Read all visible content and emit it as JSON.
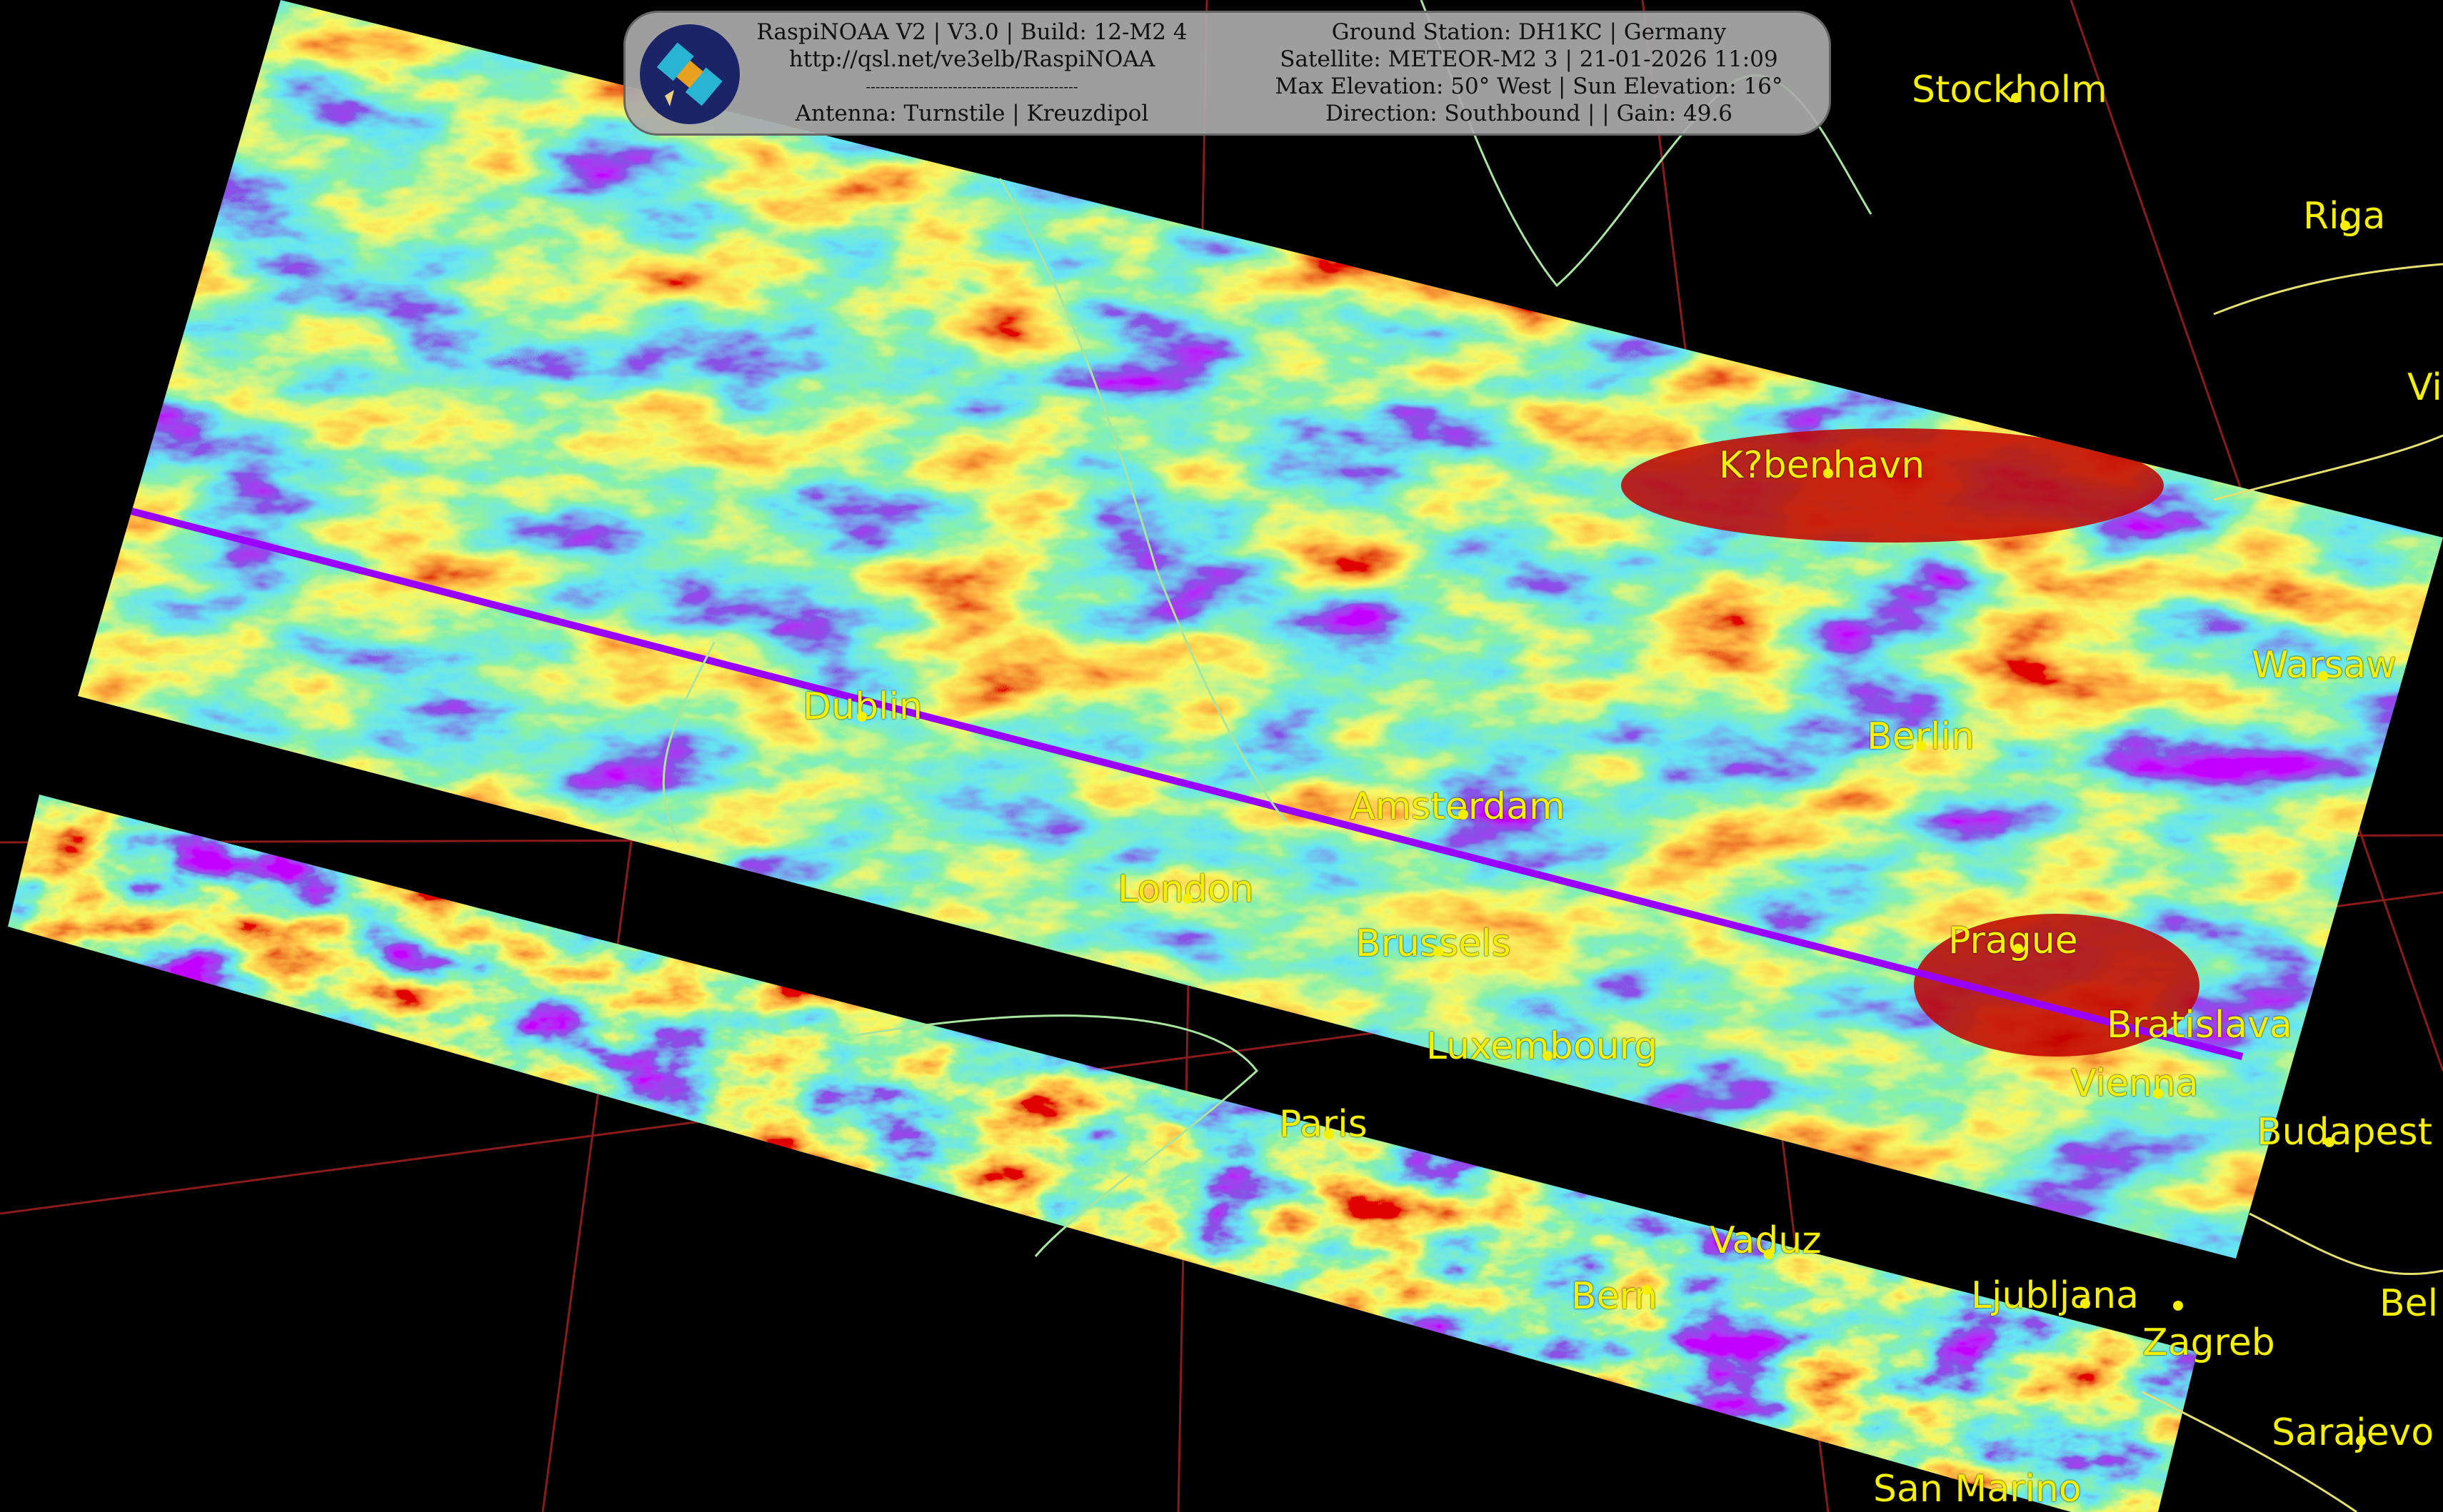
{
  "header": {
    "left_lines": [
      "RaspiNOAA V2 | V3.0 | Build: 12-M2 4",
      "http://qsl.net/ve3elb/RaspiNOAA",
      "--------------------------------------------",
      "Antenna: Turnstile | Kreuzdipol"
    ],
    "right_lines": [
      "Ground Station: DH1KC | Germany",
      "Satellite: METEOR-M2 3 | 21-01-2026 11:09",
      "Max Elevation: 50° West | Sun Elevation: 16°",
      "Direction: Southbound | | Gain: 49.6"
    ],
    "logo_icon": "satellite-icon"
  },
  "colors": {
    "city_label": "#f5f000",
    "coastline": "#a8e6a0",
    "borders": "#e6e070",
    "graticule": "#8b1a1a",
    "palette": [
      "#8a00ff",
      "#3a18c8",
      "#22c8e8",
      "#40e060",
      "#f0f020",
      "#ff7a10",
      "#c00000"
    ]
  },
  "cities": [
    {
      "name": "Stockholm",
      "dot": true
    },
    {
      "name": "Riga",
      "dot": true
    },
    {
      "name": "Vi",
      "dot": false
    },
    {
      "name": "K?benhavn",
      "dot": true
    },
    {
      "name": "Warsaw",
      "dot": true
    },
    {
      "name": "Dublin",
      "dot": true
    },
    {
      "name": "Berlin",
      "dot": true
    },
    {
      "name": "Amsterdam",
      "dot": true
    },
    {
      "name": "London",
      "dot": true
    },
    {
      "name": "Brussels",
      "dot": true
    },
    {
      "name": "Prague",
      "dot": true
    },
    {
      "name": "Luxembourg",
      "dot": true
    },
    {
      "name": "Bratislava",
      "dot": false
    },
    {
      "name": "Vienna",
      "dot": true
    },
    {
      "name": "Budapest",
      "dot": true
    },
    {
      "name": "Paris",
      "dot": true
    },
    {
      "name": "Vaduz",
      "dot": true
    },
    {
      "name": "Bern",
      "dot": true
    },
    {
      "name": "Ljubljana",
      "dot": true
    },
    {
      "name": "Zagreb",
      "dot": true
    },
    {
      "name": "Bel",
      "dot": false
    },
    {
      "name": "Sarajevo",
      "dot": true
    },
    {
      "name": "San Marino",
      "dot": false
    }
  ]
}
